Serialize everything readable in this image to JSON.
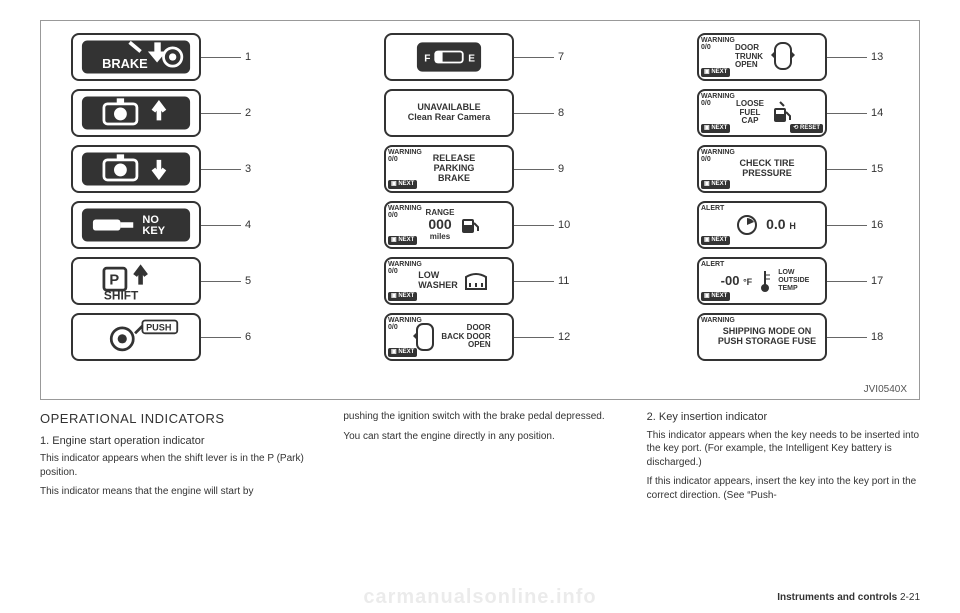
{
  "figure_code": "JVI0540X",
  "colors": {
    "border": "#333333",
    "text": "#333333",
    "bg": "#ffffff",
    "lead": "#666666"
  },
  "columns": [
    {
      "items": [
        {
          "num": 1,
          "style": "brake"
        },
        {
          "num": 2,
          "style": "seat-up"
        },
        {
          "num": 3,
          "style": "seat-down"
        },
        {
          "num": 4,
          "style": "nokey"
        },
        {
          "num": 5,
          "style": "shift"
        },
        {
          "num": 6,
          "style": "push"
        }
      ]
    },
    {
      "items": [
        {
          "num": 7,
          "style": "fuel"
        },
        {
          "num": 8,
          "text": "UNAVAILABLE\nClean Rear Camera"
        },
        {
          "num": 9,
          "warn": "WARNING\n0/0",
          "next": true,
          "text": "RELEASE\nPARKING\nBRAKE"
        },
        {
          "num": 10,
          "warn": "WARNING\n0/0",
          "next": true,
          "range": true
        },
        {
          "num": 11,
          "warn": "WARNING\n0/0",
          "next": true,
          "washer": true
        },
        {
          "num": 12,
          "warn": "WARNING\n0/0",
          "next": true,
          "door": true,
          "door_text": "DOOR\nBACK DOOR\nOPEN"
        }
      ]
    },
    {
      "items": [
        {
          "num": 13,
          "warn": "WARNING\n0/0",
          "next": true,
          "car": true,
          "car_text": "DOOR\nTRUNK\nOPEN"
        },
        {
          "num": 14,
          "warn": "WARNING\n0/0",
          "next": true,
          "reset": true,
          "fuelcap": true
        },
        {
          "num": 15,
          "warn": "WARNING\n0/0",
          "next": true,
          "text": "CHECK TIRE\nPRESSURE"
        },
        {
          "num": 16,
          "warn": "ALERT",
          "next": true,
          "timer": true
        },
        {
          "num": 17,
          "warn": "ALERT",
          "next": true,
          "temp": true
        },
        {
          "num": 18,
          "warn": "WARNING",
          "text": "SHIPPING MODE ON\nPUSH STORAGE FUSE",
          "big": true
        }
      ]
    }
  ],
  "text": {
    "col1": {
      "h2": "OPERATIONAL INDICATORS",
      "h3": "1. Engine start operation indicator",
      "p1": "This indicator appears when the shift lever is in the P (Park) position.",
      "p2": "This indicator means that the engine will start by"
    },
    "col2": {
      "p1": "pushing the ignition switch with the brake pedal depressed.",
      "p2": "You can start the engine directly in any position."
    },
    "col3": {
      "h3": "2. Key insertion indicator",
      "p1": "This indicator appears when the key needs to be inserted into the key port. (For example, the Intelligent Key battery is discharged.)",
      "p2": "If this indicator appears, insert the key into the key port in the correct direction. (See “Push-"
    }
  },
  "footer": {
    "section": "Instruments and controls",
    "page": "2-21"
  },
  "watermark": "carmanualsonline.info"
}
